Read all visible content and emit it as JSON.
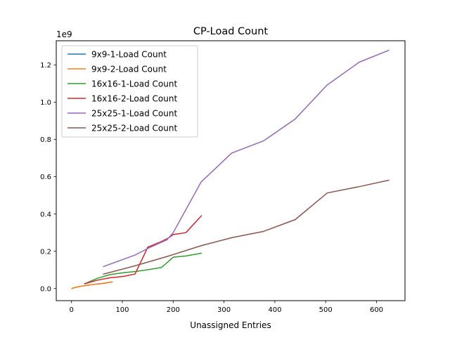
{
  "chart_data": {
    "type": "line",
    "title": "CP-Load Count",
    "xlabel": "Unassigned Entries",
    "ylabel": "",
    "scale_label": "1e9",
    "xlim": [
      -30,
      656
    ],
    "ylim": [
      -0.065,
      1.33
    ],
    "xticks": [
      0,
      100,
      200,
      300,
      400,
      500,
      600
    ],
    "yticks": [
      0.0,
      0.2,
      0.4,
      0.6,
      0.8,
      1.0,
      1.2
    ],
    "ytick_labels": [
      "0.0",
      "0.2",
      "0.4",
      "0.6",
      "0.8",
      "1.0",
      "1.2"
    ],
    "grid": false,
    "legend_position": "upper-left",
    "series": [
      {
        "name": "9x9-1-Load Count",
        "color": "#1f77b4",
        "x": [
          0,
          10,
          20,
          30,
          40,
          50,
          60,
          70,
          81
        ],
        "y": [
          0.0,
          0.008,
          0.013,
          0.017,
          0.021,
          0.024,
          0.027,
          0.031,
          0.036
        ]
      },
      {
        "name": "9x9-2-Load Count",
        "color": "#ff7f0e",
        "x": [
          0,
          10,
          20,
          30,
          40,
          50,
          60,
          70,
          81
        ],
        "y": [
          0.0,
          0.008,
          0.013,
          0.017,
          0.021,
          0.024,
          0.027,
          0.031,
          0.036
        ]
      },
      {
        "name": "16x16-1-Load Count",
        "color": "#2ca02c",
        "x": [
          25,
          51,
          76,
          102,
          127,
          152,
          177,
          200,
          225,
          256
        ],
        "y": [
          0.025,
          0.055,
          0.075,
          0.085,
          0.092,
          0.102,
          0.113,
          0.168,
          0.175,
          0.19
        ]
      },
      {
        "name": "16x16-2-Load Count",
        "color": "#d62728",
        "x": [
          25,
          51,
          76,
          102,
          125,
          150,
          175,
          190,
          200,
          225,
          256
        ],
        "y": [
          0.025,
          0.045,
          0.058,
          0.065,
          0.078,
          0.222,
          0.25,
          0.27,
          0.29,
          0.3,
          0.392
        ]
      },
      {
        "name": "25x25-1-Load Count",
        "color": "#9467bd",
        "x": [
          62,
          125,
          150,
          170,
          188,
          200,
          255,
          315,
          378,
          440,
          503,
          566,
          625
        ],
        "y": [
          0.117,
          0.18,
          0.215,
          0.24,
          0.262,
          0.3,
          0.572,
          0.727,
          0.793,
          0.91,
          1.093,
          1.215,
          1.28
        ]
      },
      {
        "name": "25x25-2-Load Count",
        "color": "#8c564b",
        "x": [
          62,
          125,
          188,
          255,
          315,
          378,
          440,
          503,
          566,
          625
        ],
        "y": [
          0.077,
          0.122,
          0.172,
          0.23,
          0.273,
          0.307,
          0.37,
          0.513,
          0.547,
          0.582
        ]
      }
    ]
  }
}
